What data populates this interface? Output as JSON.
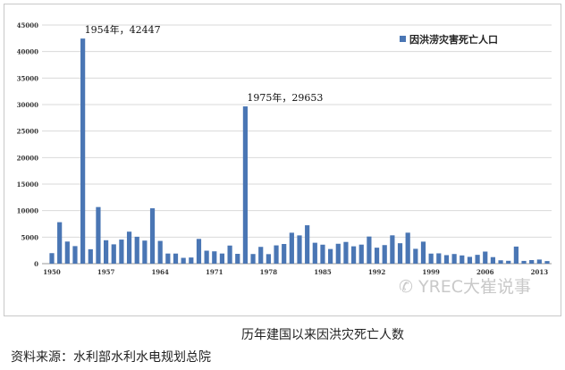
{
  "chart_data": {
    "type": "bar",
    "title": "",
    "xlabel": "",
    "ylabel": "",
    "ylim": [
      0,
      45000
    ],
    "yticks": [
      0,
      5000,
      10000,
      15000,
      20000,
      25000,
      30000,
      35000,
      40000,
      45000
    ],
    "xtick_labels": [
      "1950",
      "1957",
      "1964",
      "1971",
      "1978",
      "1985",
      "1992",
      "1999",
      "2006",
      "2013"
    ],
    "grid": true,
    "legend_placement": "top-right",
    "series": [
      {
        "name": "因洪涝灾害死亡人口",
        "color": "#4a76b4",
        "x": [
          1950,
          1951,
          1952,
          1953,
          1954,
          1955,
          1956,
          1957,
          1958,
          1959,
          1960,
          1961,
          1962,
          1963,
          1964,
          1965,
          1966,
          1967,
          1968,
          1969,
          1970,
          1971,
          1972,
          1973,
          1974,
          1975,
          1976,
          1977,
          1978,
          1979,
          1980,
          1981,
          1982,
          1983,
          1984,
          1985,
          1986,
          1987,
          1988,
          1989,
          1990,
          1991,
          1992,
          1993,
          1994,
          1995,
          1996,
          1997,
          1998,
          1999,
          2000,
          2001,
          2002,
          2003,
          2004,
          2005,
          2006,
          2007,
          2008,
          2009,
          2010,
          2011,
          2012,
          2013,
          2014
        ],
        "values": [
          1982,
          7819,
          4168,
          3308,
          42447,
          2718,
          10676,
          4415,
          3642,
          4540,
          6033,
          5074,
          4350,
          10441,
          4288,
          1906,
          1901,
          1095,
          1159,
          4667,
          2444,
          2323,
          1910,
          3413,
          1849,
          29653,
          1817,
          3163,
          1796,
          3446,
          3705,
          5832,
          5327,
          7238,
          3941,
          3578,
          2761,
          3749,
          4094,
          3270,
          3589,
          5113,
          3012,
          3499,
          5340,
          3852,
          5840,
          2799,
          4150,
          1896,
          1942,
          1605,
          1819,
          1551,
          1282,
          1660,
          2276,
          1230,
          633,
          538,
          3222,
          519,
          673,
          775,
          486
        ]
      }
    ],
    "annotations": [
      {
        "x": 1954,
        "text": "1954年，42447"
      },
      {
        "x": 1975,
        "text": "1975年，29653"
      }
    ]
  },
  "caption": "历年建国以来因洪灾死亡人数",
  "source": "资料来源：水利部水利水电规划总院",
  "watermark": "YREC大崔说事"
}
